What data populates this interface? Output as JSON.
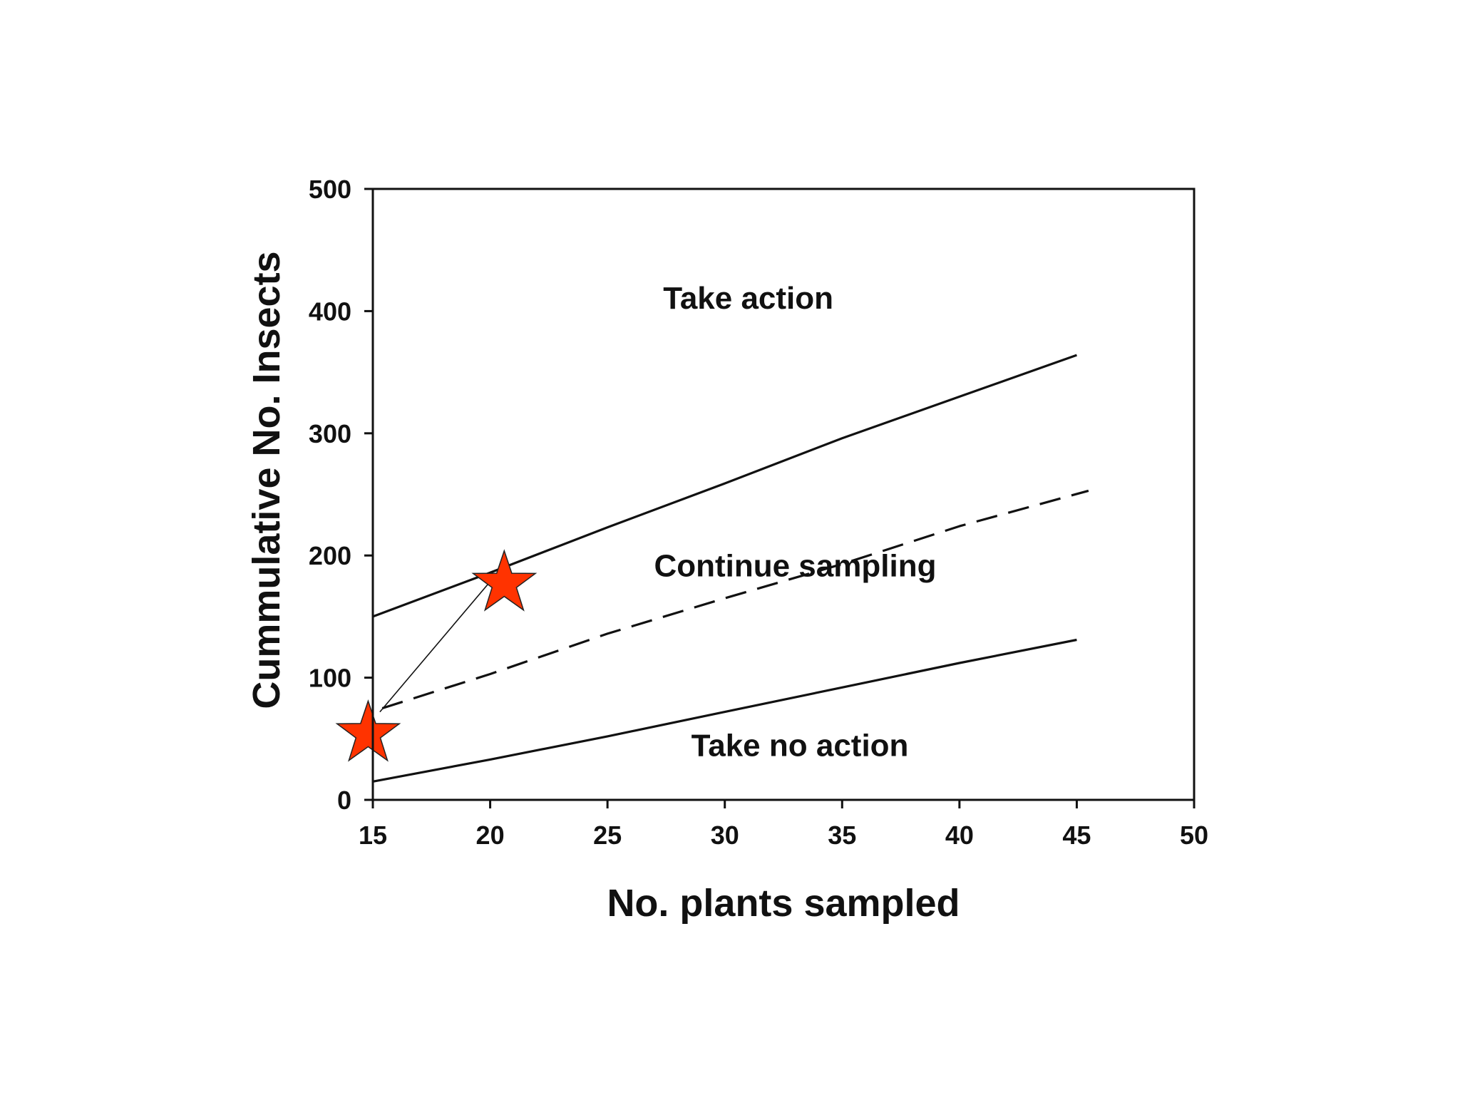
{
  "chart_data": {
    "type": "line",
    "xlabel": "No. plants sampled",
    "ylabel": "Cummulative No. Insects",
    "xlim": [
      15,
      50
    ],
    "ylim": [
      0,
      500
    ],
    "x_ticks": [
      15,
      20,
      25,
      30,
      35,
      40,
      45,
      50
    ],
    "y_ticks": [
      0,
      100,
      200,
      300,
      400,
      500
    ],
    "grid": false,
    "series": [
      {
        "style": "solid",
        "color": "#111111",
        "x": [
          15,
          20,
          25,
          30,
          35,
          40,
          45
        ],
        "y": [
          150,
          186,
          223,
          259,
          296,
          330,
          364
        ]
      },
      {
        "style": "dashed",
        "color": "#111111",
        "x": [
          15.4,
          20,
          25,
          30,
          35,
          40,
          45.5
        ],
        "y": [
          75,
          103,
          136,
          165,
          193,
          224,
          253
        ]
      },
      {
        "style": "solid",
        "color": "#111111",
        "x": [
          15,
          20,
          25,
          30,
          35,
          40,
          45
        ],
        "y": [
          15,
          33,
          52,
          72,
          92,
          112,
          131
        ]
      }
    ],
    "markers": [
      {
        "shape": "star",
        "color": "#ff3300",
        "x": 14.8,
        "y": 54
      },
      {
        "shape": "star",
        "color": "#ff3300",
        "x": 20.6,
        "y": 177
      }
    ],
    "connector": {
      "x": [
        15.3,
        20.5
      ],
      "y": [
        72,
        190
      ]
    },
    "annotations": [
      {
        "text": "Take action",
        "x": 31,
        "y": 402
      },
      {
        "text": "Continue sampling",
        "x": 33,
        "y": 183
      },
      {
        "text": "Take no action",
        "x": 33.2,
        "y": 36
      }
    ]
  }
}
